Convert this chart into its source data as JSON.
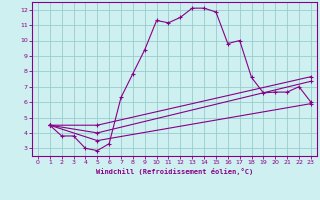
{
  "xlabel": "Windchill (Refroidissement éolien,°C)",
  "background_color": "#cef0f0",
  "plot_bg_color": "#cef0f0",
  "line_color": "#880088",
  "grid_color": "#99cccc",
  "xlim": [
    -0.5,
    23.5
  ],
  "ylim": [
    2.5,
    12.5
  ],
  "xticks": [
    0,
    1,
    2,
    3,
    4,
    5,
    6,
    7,
    8,
    9,
    10,
    11,
    12,
    13,
    14,
    15,
    16,
    17,
    18,
    19,
    20,
    21,
    22,
    23
  ],
  "yticks": [
    3,
    4,
    5,
    6,
    7,
    8,
    9,
    10,
    11,
    12
  ],
  "series": [
    {
      "x": [
        1,
        2,
        3,
        4,
        5,
        6,
        7,
        8,
        9,
        10,
        11,
        12,
        13,
        14,
        15,
        16,
        17,
        18,
        19,
        20,
        21,
        22,
        23
      ],
      "y": [
        4.5,
        3.8,
        3.8,
        3.0,
        2.85,
        3.3,
        6.3,
        7.85,
        9.4,
        11.3,
        11.15,
        11.5,
        12.1,
        12.1,
        11.85,
        9.8,
        10.0,
        7.6,
        6.6,
        6.65,
        6.65,
        7.0,
        6.0
      ]
    },
    {
      "x": [
        1,
        5,
        23
      ],
      "y": [
        4.5,
        3.5,
        5.9
      ]
    },
    {
      "x": [
        1,
        5,
        23
      ],
      "y": [
        4.5,
        4.0,
        7.35
      ]
    },
    {
      "x": [
        1,
        5,
        23
      ],
      "y": [
        4.5,
        4.5,
        7.65
      ]
    }
  ]
}
